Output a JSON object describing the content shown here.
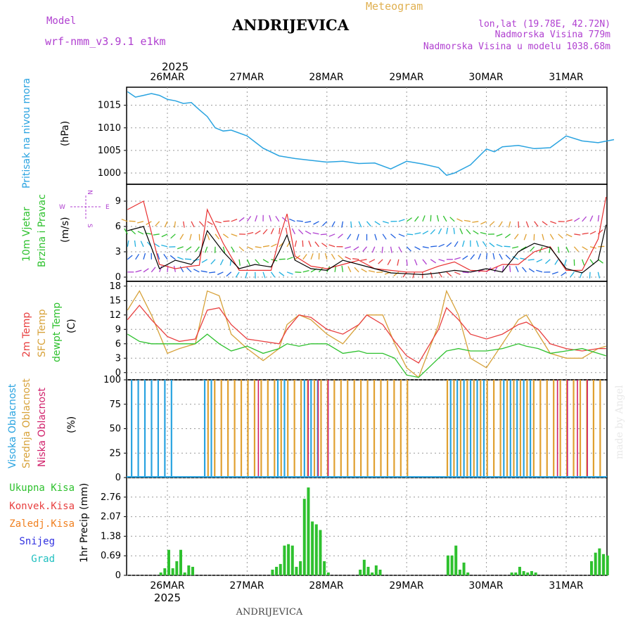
{
  "header": {
    "title_app": "Meteogram",
    "station": "ANDRIJEVICA",
    "model_label": "Model",
    "model_name": "wrf-nmm_v3.9.1 e1km",
    "coords": "lon,lat (19.78E, 42.72N)",
    "altitude": "Nadmorska Visina 779m",
    "model_altitude": "Nadmorska Visina u modelu 1038.68m",
    "footer_station": "ANDRIJEVICA",
    "signature": "made by Angel"
  },
  "colors": {
    "pressure": "#29a3e0",
    "wind_speed": "#000000",
    "wind_gust": "#e83030",
    "t2m": "#e84040",
    "sfc": "#d7a23a",
    "dewpt": "#2ec12e",
    "high_cloud": "#29a3e0",
    "mid_cloud": "#e0a030",
    "low_cloud": "#d0206a",
    "total_precip": "#2ec12e",
    "conv_precip": "#e84040",
    "frozen": "#f08020",
    "snow": "#3030e0",
    "hail": "#20c0c0",
    "model_purple": "#b040d0"
  },
  "axis_top": {
    "year": "2025",
    "days": [
      "26MAR",
      "27MAR",
      "28MAR",
      "29MAR",
      "30MAR",
      "31MAR"
    ]
  },
  "axis_bottom": {
    "year": "2025",
    "days": [
      "26MAR",
      "27MAR",
      "28MAR",
      "29MAR",
      "30MAR",
      "31MAR"
    ]
  },
  "panels": {
    "pressure": {
      "label": "Pritisak na nivou mora",
      "unit": "(hPa)",
      "ticks": [
        "1000",
        "1005",
        "1010",
        "1015"
      ]
    },
    "wind": {
      "label1": "10m Vjetar",
      "label2": "Brzina i Pravac",
      "unit": "(m/s)",
      "ticks": [
        "0",
        "3",
        "6",
        "9"
      ],
      "compass": {
        "n": "N",
        "w": "W",
        "e": "E",
        "s": "S"
      }
    },
    "temp": {
      "label1": "2m Temp",
      "label2": "SFC Temp",
      "label3": "dewpt Temp",
      "unit": "(C)",
      "ticks": [
        "0",
        "3",
        "6",
        "9",
        "12",
        "15",
        "18"
      ]
    },
    "cloud": {
      "label1": "Visoka Oblacnost",
      "label2": "Srednja Oblacnost",
      "label3": "Niska Oblacnost",
      "unit": "(%)",
      "ticks": [
        "0",
        "25",
        "50",
        "75",
        "100"
      ]
    },
    "precip": {
      "legend": [
        "Ukupna Kisa",
        "Konvek.Kisa",
        "Zaledj.Kisa",
        "Snijeg",
        "Grad"
      ],
      "unit": "1hr Precip (mm)",
      "ticks": [
        "0",
        "0.69",
        "1.38",
        "2.07",
        "2.76"
      ]
    }
  },
  "chart_data": [
    {
      "type": "line",
      "title": "Pritisak na nivou mora",
      "ylabel": "(hPa)",
      "ylim": [
        997.5,
        1019
      ],
      "x_unit": "days since 26MAR 00Z",
      "x": [
        -0.5,
        -0.4,
        -0.3,
        -0.2,
        -0.1,
        0,
        0.1,
        0.2,
        0.3,
        0.4,
        0.5,
        0.6,
        0.7,
        0.8,
        1,
        1.2,
        1.4,
        1.6,
        1.8,
        2,
        2.2,
        2.4,
        2.6,
        2.8,
        3,
        3.2,
        3.4,
        3.5,
        3.6,
        3.8,
        4,
        4.1,
        4.2,
        4.4,
        4.6,
        4.8,
        5,
        5.2,
        5.4,
        5.6
      ],
      "series": [
        {
          "name": "Pritisak na nivou mora",
          "values": [
            1018,
            1016.8,
            1017.2,
            1017.6,
            1017.2,
            1016.3,
            1016,
            1015.4,
            1015.6,
            1014,
            1012.5,
            1010,
            1009.3,
            1009.5,
            1008.2,
            1005.5,
            1003.8,
            1003.2,
            1002.8,
            1002.4,
            1002.6,
            1002.1,
            1002.2,
            1000.9,
            1002.6,
            1002,
            1001.2,
            999.5,
            1000,
            1001.8,
            1005.3,
            1004.7,
            1005.8,
            1006.1,
            1005.4,
            1005.6,
            1008.2,
            1007.1,
            1006.7,
            1007.4
          ]
        }
      ]
    },
    {
      "type": "line",
      "title": "10m Vjetar Brzina i Pravac",
      "ylabel": "(m/s)",
      "ylim": [
        -0.5,
        11
      ],
      "x_unit": "days since 26MAR 00Z",
      "x": [
        -0.5,
        -0.3,
        -0.1,
        0.1,
        0.3,
        0.4,
        0.5,
        0.7,
        0.9,
        1.1,
        1.3,
        1.4,
        1.5,
        1.6,
        1.8,
        2,
        2.2,
        2.4,
        2.6,
        2.8,
        3,
        3.2,
        3.4,
        3.6,
        3.8,
        4,
        4.2,
        4.4,
        4.6,
        4.8,
        5,
        5.2,
        5.4,
        5.5
      ],
      "series": [
        {
          "name": "speed",
          "values": [
            5.5,
            6,
            1,
            2,
            1.5,
            2.5,
            5.5,
            3,
            1,
            1.5,
            1.2,
            3,
            5,
            2,
            1,
            0.8,
            2,
            1.5,
            1,
            0.5,
            0.4,
            0.3,
            0.5,
            0.8,
            0.6,
            1,
            0.6,
            3,
            4,
            3.5,
            1,
            0.5,
            2,
            6.2
          ]
        },
        {
          "name": "gust",
          "values": [
            8,
            9,
            1.5,
            1,
            1.3,
            1.4,
            8,
            4,
            0.8,
            0.8,
            0.8,
            4.5,
            7.5,
            2.5,
            1.3,
            1,
            1.5,
            2,
            1,
            0.8,
            0.6,
            0.6,
            1.3,
            1.8,
            0.8,
            0.7,
            1.5,
            1.5,
            3,
            3.6,
            0.8,
            0.8,
            4.5,
            9.5
          ]
        }
      ]
    },
    {
      "type": "line",
      "title": "2m Temp / SFC Temp / dewpt Temp",
      "ylabel": "(C)",
      "ylim": [
        -1.5,
        19
      ],
      "x_unit": "days since 26MAR 00Z",
      "x": [
        -0.5,
        -0.35,
        -0.2,
        0,
        0.15,
        0.35,
        0.5,
        0.65,
        0.8,
        1,
        1.2,
        1.4,
        1.5,
        1.65,
        1.8,
        2,
        2.2,
        2.4,
        2.5,
        2.7,
        2.85,
        3,
        3.15,
        3.4,
        3.5,
        3.65,
        3.8,
        4,
        4.2,
        4.4,
        4.5,
        4.65,
        4.8,
        5,
        5.2,
        5.4,
        5.5
      ],
      "series": [
        {
          "name": "2m Temp",
          "values": [
            11,
            14,
            11,
            7.5,
            6.5,
            7,
            13,
            13.5,
            10,
            7,
            6.5,
            6,
            9,
            12,
            11.5,
            9,
            8,
            10,
            12,
            10,
            6.5,
            3.5,
            2,
            9,
            13.5,
            11,
            8,
            7,
            8,
            10,
            10.5,
            9,
            6,
            5,
            4.5,
            5,
            5
          ]
        },
        {
          "name": "SFC Temp",
          "values": [
            13,
            17,
            12,
            4,
            5,
            6,
            17,
            16,
            8,
            5,
            2.5,
            5,
            10,
            12,
            11,
            8,
            6,
            10,
            12,
            12,
            6,
            1,
            -1,
            10,
            17,
            12,
            3,
            1,
            6,
            11,
            12,
            8,
            4,
            3,
            3,
            5,
            5.5
          ]
        },
        {
          "name": "dewpt Temp",
          "values": [
            8,
            6.5,
            6,
            6,
            6,
            6,
            8,
            6,
            4.5,
            5.5,
            4,
            5,
            6,
            5.5,
            6,
            6,
            4,
            4.5,
            4,
            4,
            3,
            -0.5,
            -1,
            3,
            4.5,
            5,
            4.5,
            4.5,
            5,
            6,
            5.5,
            5,
            4,
            4.5,
            5,
            4,
            3.5
          ]
        }
      ]
    },
    {
      "type": "bar",
      "title": "Oblacnost",
      "ylabel": "(%)",
      "ylim": [
        0,
        100
      ],
      "x_unit": "days since 26MAR 00Z",
      "note": "per-hour bars (high=100 for x<0.1; mid=100 for 0.45<x<3.0 and 3.5<x<5.5; low spikes)",
      "segments": {
        "high_full": [
          [
            -0.5,
            0.1
          ],
          [
            0.4,
            0.6
          ],
          [
            1.3,
            1.5
          ],
          [
            1.7,
            1.9
          ],
          [
            3.5,
            4.0
          ],
          [
            4.2,
            4.6
          ]
        ],
        "mid_full": [
          [
            0.1,
            0.15
          ],
          [
            0.45,
            3.0
          ],
          [
            3.5,
            5.5
          ]
        ],
        "low_full": [
          [
            1.1,
            1.2
          ],
          [
            1.7,
            2.0
          ],
          [
            4.8,
            5.3
          ]
        ]
      }
    },
    {
      "type": "bar",
      "title": "1hr Precip",
      "ylabel": "1hr Precip (mm)",
      "ylim": [
        0,
        3.45
      ],
      "x_unit": "days since 26MAR 00Z",
      "x": [
        -0.1,
        -0.05,
        0,
        0.05,
        0.1,
        0.15,
        0.2,
        0.25,
        0.3,
        1.3,
        1.35,
        1.4,
        1.45,
        1.5,
        1.55,
        1.6,
        1.65,
        1.7,
        1.75,
        1.8,
        1.85,
        1.9,
        1.95,
        2.0,
        2.4,
        2.45,
        2.5,
        2.55,
        2.6,
        2.65,
        3.5,
        3.55,
        3.6,
        3.65,
        3.7,
        3.75,
        4.3,
        4.35,
        4.4,
        4.45,
        4.5,
        4.55,
        4.6,
        5.3,
        5.35,
        5.4,
        5.45,
        5.5
      ],
      "series": [
        {
          "name": "Ukupna Kisa",
          "values": [
            0.1,
            0.25,
            0.9,
            0.25,
            0.5,
            0.9,
            0.1,
            0.35,
            0.3,
            0.2,
            0.3,
            0.4,
            1.05,
            1.1,
            1.05,
            0.3,
            0.5,
            2.7,
            3.1,
            1.9,
            1.8,
            1.6,
            0.5,
            0.1,
            0.2,
            0.55,
            0.3,
            0.1,
            0.35,
            0.2,
            0.7,
            0.7,
            1.05,
            0.2,
            0.45,
            0.1,
            0.1,
            0.1,
            0.3,
            0.15,
            0.1,
            0.15,
            0.1,
            0.5,
            0.8,
            0.95,
            0.75,
            0.7
          ]
        }
      ]
    }
  ]
}
